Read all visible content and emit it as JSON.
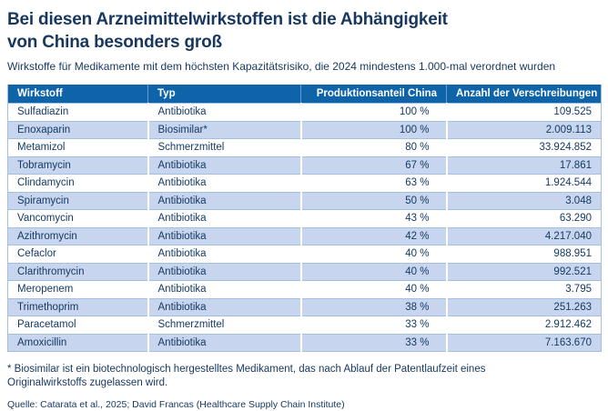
{
  "title": "Bei diesen Arzneimittelwirkstoffen ist die Abhängigkeit von China besonders groß",
  "subtitle": "Wirkstoffe für Medikamente mit dem höchsten Kapazitätsrisiko, die 2024 mindestens 1.000-mal verordnet wurden",
  "table": {
    "columns": [
      "Wirkstoff",
      "Typ",
      "Produktionsanteil China",
      "Anzahl der Verschreibungen"
    ],
    "rows": [
      {
        "wirkstoff": "Sulfadiazin",
        "typ": "Antibiotika",
        "produktionsanteil": "100 %",
        "verschreibungen": "109.525"
      },
      {
        "wirkstoff": "Enoxaparin",
        "typ": "Biosimilar*",
        "produktionsanteil": "100 %",
        "verschreibungen": "2.009.113"
      },
      {
        "wirkstoff": "Metamizol",
        "typ": "Schmerzmittel",
        "produktionsanteil": "80 %",
        "verschreibungen": "33.924.852"
      },
      {
        "wirkstoff": "Tobramycin",
        "typ": "Antibiotika",
        "produktionsanteil": "67 %",
        "verschreibungen": "17.861"
      },
      {
        "wirkstoff": "Clindamycin",
        "typ": "Antibiotika",
        "produktionsanteil": "63 %",
        "verschreibungen": "1.924.544"
      },
      {
        "wirkstoff": "Spiramycin",
        "typ": "Antibiotika",
        "produktionsanteil": "50 %",
        "verschreibungen": "3.048"
      },
      {
        "wirkstoff": "Vancomycin",
        "typ": "Antibiotika",
        "produktionsanteil": "43 %",
        "verschreibungen": "63.290"
      },
      {
        "wirkstoff": "Azithromycin",
        "typ": "Antibiotika",
        "produktionsanteil": "42 %",
        "verschreibungen": "4.217.040"
      },
      {
        "wirkstoff": "Cefaclor",
        "typ": "Antibiotika",
        "produktionsanteil": "40 %",
        "verschreibungen": "988.951"
      },
      {
        "wirkstoff": "Clarithromycin",
        "typ": "Antibiotika",
        "produktionsanteil": "40 %",
        "verschreibungen": "992.521"
      },
      {
        "wirkstoff": "Meropenem",
        "typ": "Antibiotika",
        "produktionsanteil": "40 %",
        "verschreibungen": "3.795"
      },
      {
        "wirkstoff": "Trimethoprim",
        "typ": "Antibiotika",
        "produktionsanteil": "38 %",
        "verschreibungen": "251.263"
      },
      {
        "wirkstoff": "Paracetamol",
        "typ": "Schmerzmittel",
        "produktionsanteil": "33 %",
        "verschreibungen": "2.912.462"
      },
      {
        "wirkstoff": "Amoxicillin",
        "typ": "Antibiotika",
        "produktionsanteil": "33 %",
        "verschreibungen": "7.163.670"
      }
    ]
  },
  "chart_data": {
    "type": "table",
    "title": "Bei diesen Arzneimittelwirkstoffen ist die Abhängigkeit von China besonders groß",
    "subtitle": "Wirkstoffe für Medikamente mit dem höchsten Kapazitätsrisiko, die 2024 mindestens 1.000-mal verordnet wurden",
    "columns": [
      "Wirkstoff",
      "Typ",
      "Produktionsanteil China (%)",
      "Anzahl der Verschreibungen"
    ],
    "rows": [
      [
        "Sulfadiazin",
        "Antibiotika",
        100,
        109525
      ],
      [
        "Enoxaparin",
        "Biosimilar*",
        100,
        2009113
      ],
      [
        "Metamizol",
        "Schmerzmittel",
        80,
        33924852
      ],
      [
        "Tobramycin",
        "Antibiotika",
        67,
        17861
      ],
      [
        "Clindamycin",
        "Antibiotika",
        63,
        1924544
      ],
      [
        "Spiramycin",
        "Antibiotika",
        50,
        3048
      ],
      [
        "Vancomycin",
        "Antibiotika",
        43,
        63290
      ],
      [
        "Azithromycin",
        "Antibiotika",
        42,
        4217040
      ],
      [
        "Cefaclor",
        "Antibiotika",
        40,
        988951
      ],
      [
        "Clarithromycin",
        "Antibiotika",
        40,
        992521
      ],
      [
        "Meropenem",
        "Antibiotika",
        40,
        3795
      ],
      [
        "Trimethoprim",
        "Antibiotika",
        38,
        251263
      ],
      [
        "Paracetamol",
        "Schmerzmittel",
        33,
        2912462
      ],
      [
        "Amoxicillin",
        "Antibiotika",
        33,
        7163670
      ]
    ]
  },
  "footnote": "* Biosimilar ist ein biotechnologisch hergestelltes Medikament, das nach Ablauf der Patentlaufzeit eines Originalwirkstoffs zugelassen wird.",
  "source": "Quelle: Catarata et al., 2025; David Francas (Healthcare Supply Chain Institute)",
  "colors": {
    "header_bg": "#0e63a9",
    "stripe": "#c7d6ee",
    "text_navy": "#17375f",
    "hairline": "#a3c0e2"
  }
}
